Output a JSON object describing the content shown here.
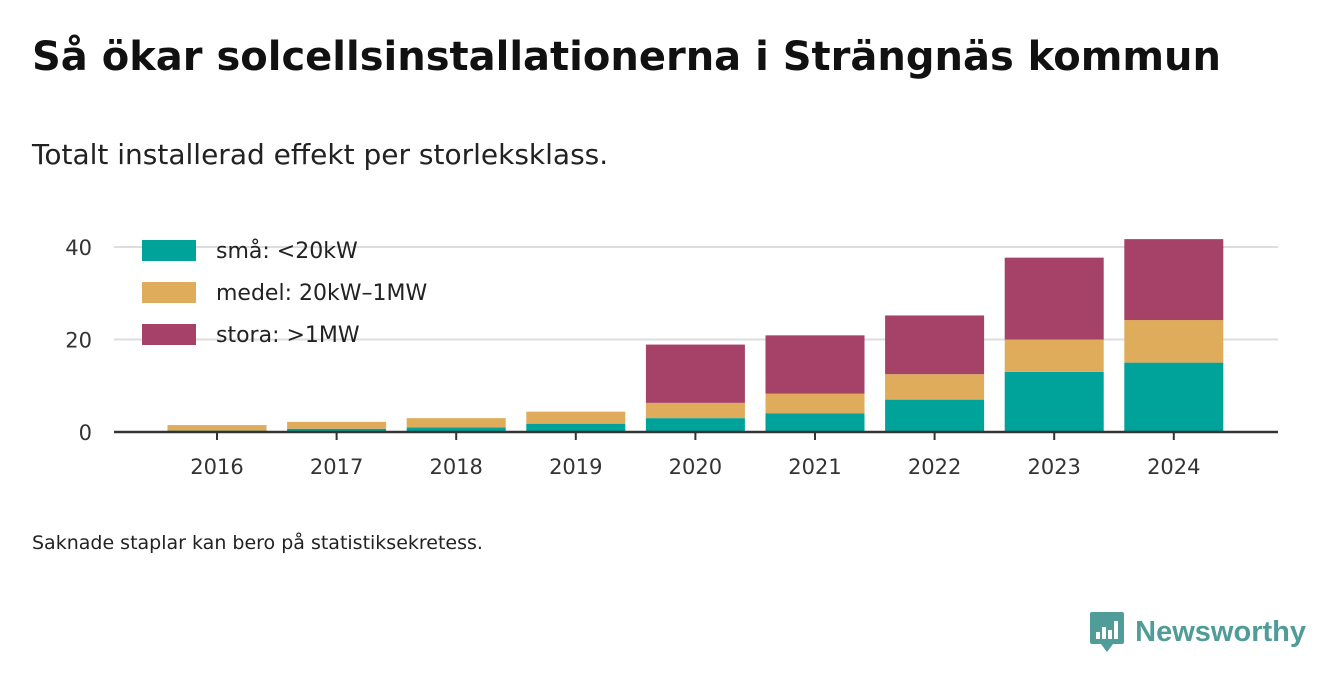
{
  "header": {
    "title": "Så ökar solcellsinstallationerna i Strängnäs kommun",
    "subtitle": "Totalt installerad effekt per storleksklass."
  },
  "footer": {
    "note": "Saknade staplar kan bero på statistiksekretess.",
    "brand": "Newsworthy",
    "brand_icon": "bar-chart-speech-bubble-icon"
  },
  "colors": {
    "small": "#00a39a",
    "medium": "#deac5a",
    "large": "#a64167",
    "brand": "#4f9c99",
    "grid": "#dddddd",
    "axis": "#333333"
  },
  "chart_data": {
    "type": "bar",
    "stacked": true,
    "title": "Så ökar solcellsinstallationerna i Strängnäs kommun",
    "subtitle": "Totalt installerad effekt per storleksklass.",
    "xlabel": "",
    "ylabel": "",
    "categories": [
      "2016",
      "2017",
      "2018",
      "2019",
      "2020",
      "2021",
      "2022",
      "2023",
      "2024"
    ],
    "series": [
      {
        "name": "små: <20kW",
        "color": "#00a39a",
        "values": [
          0.3,
          0.7,
          1.0,
          1.8,
          3.0,
          4.0,
          7.0,
          13.0,
          15.0
        ]
      },
      {
        "name": "medel: 20kW–1MW",
        "color": "#deac5a",
        "values": [
          1.2,
          1.5,
          2.0,
          2.6,
          3.3,
          4.3,
          5.5,
          7.0,
          9.2
        ]
      },
      {
        "name": "stora: >1MW",
        "color": "#a64167",
        "values": [
          0,
          0,
          0,
          0,
          12.6,
          12.6,
          12.7,
          17.7,
          17.5
        ]
      }
    ],
    "ylim": [
      0,
      44
    ],
    "yticks": [
      "0",
      "20",
      "40"
    ],
    "grid": true,
    "legend": "top-left"
  }
}
